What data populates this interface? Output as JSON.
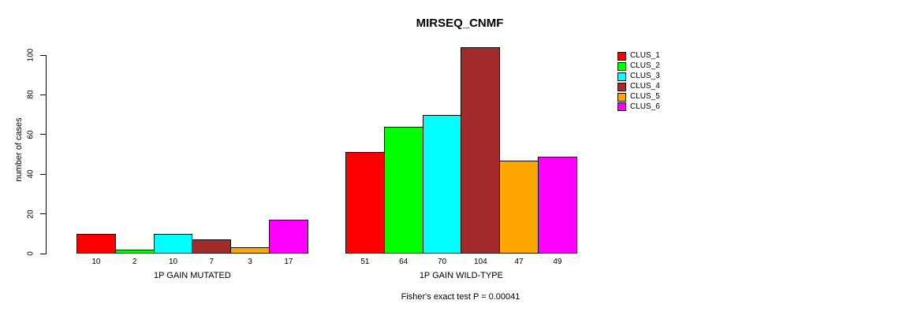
{
  "chart_data": {
    "type": "bar",
    "title": "MIRSEQ_CNMF",
    "ylabel": "number of cases",
    "ylim": [
      0,
      100
    ],
    "yticks": [
      0,
      20,
      40,
      60,
      80,
      100
    ],
    "grid": false,
    "legend": {
      "position": "right",
      "entries": [
        {
          "label": "CLUS_1",
          "color": "#FF0000"
        },
        {
          "label": "CLUS_2",
          "color": "#00FF00"
        },
        {
          "label": "CLUS_3",
          "color": "#00FFFF"
        },
        {
          "label": "CLUS_4",
          "color": "#A52A2A"
        },
        {
          "label": "CLUS_5",
          "color": "#FFA500"
        },
        {
          "label": "CLUS_6",
          "color": "#FF00FF"
        }
      ]
    },
    "categories": [
      "CLUS_1",
      "CLUS_2",
      "CLUS_3",
      "CLUS_4",
      "CLUS_5",
      "CLUS_6"
    ],
    "groups": [
      {
        "label": "1P GAIN MUTATED",
        "values": [
          10,
          2,
          10,
          7,
          3,
          17
        ]
      },
      {
        "label": "1P GAIN WILD-TYPE",
        "values": [
          51,
          64,
          70,
          104,
          47,
          49
        ]
      }
    ],
    "bar_value_labels_shown": true,
    "footnote": "Fisher's exact test P = 0.00041"
  }
}
